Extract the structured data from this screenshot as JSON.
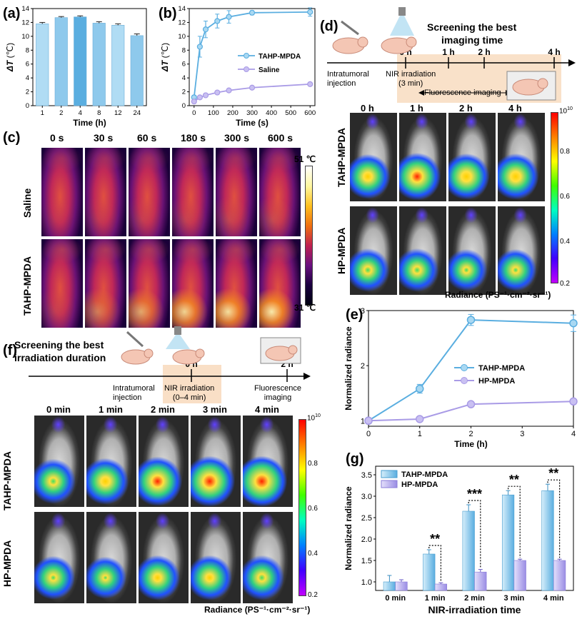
{
  "panels": {
    "a": "(a)",
    "b": "(b)",
    "c": "(c)",
    "d": "(d)",
    "e": "(e)",
    "f": "(f)",
    "g": "(g)"
  },
  "panel_a": {
    "ylabel_sym": "ΔT",
    "ylabel_unit": "(℃)",
    "xlabel": "Time (h)",
    "categories": [
      "1",
      "2",
      "4",
      "8",
      "12",
      "24"
    ],
    "yticks": [
      "0",
      "2",
      "4",
      "6",
      "8",
      "10",
      "12",
      "14"
    ]
  },
  "panel_b": {
    "ylabel_sym": "ΔT",
    "ylabel_unit": "(℃)",
    "xlabel": "Time (s)",
    "xticks": [
      "0",
      "100",
      "200",
      "300",
      "400",
      "500",
      "600"
    ],
    "yticks": [
      "0",
      "2",
      "4",
      "6",
      "8",
      "10",
      "12",
      "14"
    ],
    "legend": [
      "TAHP-MPDA",
      "Saline"
    ]
  },
  "panel_c": {
    "times": [
      "0 s",
      "30 s",
      "60 s",
      "180 s",
      "300 s",
      "600 s"
    ],
    "rows": [
      "Saline",
      "TAHP-MPDA"
    ],
    "scale_max": "51 ℃",
    "scale_min": "31 ℃"
  },
  "panel_d": {
    "title_line1": "Screening the best",
    "title_line2": "imaging time",
    "timeline": [
      "0 h",
      "1 h",
      "2 h",
      "4 h"
    ],
    "injection": "Intratumoral\ninjection",
    "nir": "NIR irradiation\n(3 min)",
    "fluor": "Fluorescence imaging",
    "times": [
      "0 h",
      "1 h",
      "2 h",
      "4 h"
    ],
    "rows": [
      "TAHP-MPDA",
      "HP-MPDA"
    ],
    "scale_top_base": "10",
    "scale_top_exp": "10",
    "scale_ticks": [
      "0.8",
      "0.6",
      "0.4",
      "0.2"
    ],
    "radiance_label": "Radiance (PS⁻¹·cm⁻²·sr⁻¹)"
  },
  "panel_e": {
    "ylabel": "Normalized radiance",
    "xlabel": "Time (h)",
    "xticks": [
      "0",
      "1",
      "2",
      "3",
      "4"
    ],
    "yticks": [
      "1",
      "2",
      "3"
    ],
    "legend": [
      "TAHP-MPDA",
      "HP-MPDA"
    ]
  },
  "panel_f": {
    "title_line1": "Screening the best",
    "title_line2": "irradiation duration",
    "timeline": [
      "0 h",
      "2 h"
    ],
    "injection": "Intratumoral\ninjection",
    "nir": "NIR irradiation\n(0–4 min)",
    "fluor": "Fluorescence\nimaging",
    "times": [
      "0 min",
      "1 min",
      "2 min",
      "3 min",
      "4 min"
    ],
    "rows": [
      "TAHP-MPDA",
      "HP-MPDA"
    ],
    "scale_top_base": "10",
    "scale_top_exp": "10",
    "scale_ticks": [
      "0.8",
      "0.6",
      "0.4",
      "0.2"
    ],
    "radiance_label": "Radiance (PS⁻¹·cm⁻²·sr⁻¹)"
  },
  "panel_g": {
    "ylabel": "Normalized radiance",
    "xlabel": "NIR-irradiation time",
    "categories": [
      "0 min",
      "1 min",
      "2 min",
      "3 min",
      "4 min"
    ],
    "yticks": [
      "1.0",
      "1.5",
      "2.0",
      "2.5",
      "3.0",
      "3.5"
    ],
    "legend": [
      "TAHP-MPDA",
      "HP-MPDA"
    ],
    "sig": [
      "**",
      "***",
      "**",
      "**"
    ]
  },
  "colors": {
    "blue": "#5aaee0",
    "blue_light": "#a9d8f2",
    "lilac": "#a99be6",
    "lilac_light": "#c9c0f2",
    "axis": "#000000"
  },
  "chart_data": [
    {
      "type": "bar",
      "id": "a",
      "categories": [
        "1",
        "2",
        "4",
        "8",
        "12",
        "24"
      ],
      "values": [
        11.8,
        12.7,
        12.8,
        11.9,
        11.6,
        10.1
      ],
      "errors": [
        0.2,
        0.15,
        0.15,
        0.2,
        0.2,
        0.25
      ],
      "xlabel": "Time (h)",
      "ylabel": "ΔT (℃)",
      "ylim": [
        0,
        14
      ]
    },
    {
      "type": "line",
      "id": "b",
      "x": [
        0,
        30,
        60,
        120,
        180,
        300,
        600
      ],
      "series": [
        {
          "name": "TAHP-MPDA",
          "values": [
            1.2,
            8.5,
            11.0,
            12.2,
            12.8,
            13.4,
            13.5
          ],
          "errors": [
            0.3,
            1.5,
            1.2,
            1.0,
            0.9,
            0.3,
            0.6
          ]
        },
        {
          "name": "Saline",
          "values": [
            0.6,
            1.2,
            1.5,
            1.9,
            2.2,
            2.6,
            3.1
          ],
          "errors": [
            0.1,
            0.2,
            0.2,
            0.2,
            0.2,
            0.2,
            0.2
          ]
        }
      ],
      "xlabel": "Time (s)",
      "ylabel": "ΔT (℃)",
      "xlim": [
        0,
        600
      ],
      "ylim": [
        0,
        14
      ]
    },
    {
      "type": "line",
      "id": "e",
      "x": [
        0,
        1,
        2,
        4
      ],
      "series": [
        {
          "name": "TAHP-MPDA",
          "values": [
            1.0,
            1.58,
            2.83,
            2.77
          ],
          "errors": [
            0.05,
            0.08,
            0.1,
            0.15
          ]
        },
        {
          "name": "HP-MPDA",
          "values": [
            1.0,
            1.03,
            1.3,
            1.35
          ],
          "errors": [
            0.03,
            0.03,
            0.03,
            0.03
          ]
        }
      ],
      "xlabel": "Time (h)",
      "ylabel": "Normalized radiance",
      "xlim": [
        0,
        4
      ],
      "ylim": [
        0.9,
        3.0
      ]
    },
    {
      "type": "bar",
      "id": "g",
      "categories": [
        "0 min",
        "1 min",
        "2 min",
        "3 min",
        "4 min"
      ],
      "series": [
        {
          "name": "TAHP-MPDA",
          "values": [
            1.0,
            1.65,
            2.65,
            3.03,
            3.13
          ],
          "errors": [
            0.15,
            0.1,
            0.15,
            0.1,
            0.15
          ]
        },
        {
          "name": "HP-MPDA",
          "values": [
            1.0,
            0.95,
            1.23,
            1.5,
            1.5
          ],
          "errors": [
            0.05,
            0.03,
            0.06,
            0.03,
            0.03
          ]
        }
      ],
      "xlabel": "NIR-irradiation time",
      "ylabel": "Normalized radiance",
      "ylim": [
        0.8,
        3.7
      ]
    }
  ]
}
